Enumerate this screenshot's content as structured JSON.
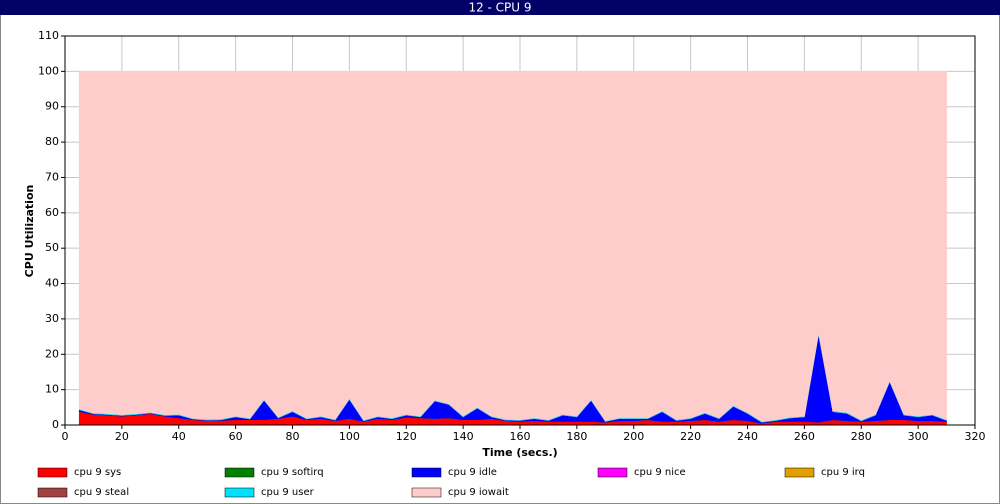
{
  "chart_data": {
    "type": "stacked_area",
    "title": "12 - CPU 9",
    "xlabel": "Time (secs.)",
    "ylabel": "CPU Utilization",
    "x": [
      5,
      10,
      15,
      20,
      25,
      30,
      35,
      40,
      45,
      50,
      55,
      60,
      65,
      70,
      75,
      80,
      85,
      90,
      95,
      100,
      105,
      110,
      115,
      120,
      125,
      130,
      135,
      140,
      145,
      150,
      155,
      160,
      165,
      170,
      175,
      180,
      185,
      190,
      195,
      200,
      205,
      210,
      215,
      220,
      225,
      230,
      235,
      240,
      245,
      250,
      255,
      260,
      265,
      270,
      275,
      280,
      285,
      290,
      295,
      300,
      305,
      310
    ],
    "xlim": [
      0,
      320
    ],
    "xticks": [
      0,
      20,
      40,
      60,
      80,
      100,
      120,
      140,
      160,
      180,
      200,
      220,
      240,
      260,
      280,
      300,
      320
    ],
    "ylim": [
      0,
      110
    ],
    "yticks": [
      0,
      10,
      20,
      30,
      40,
      50,
      60,
      70,
      80,
      90,
      100,
      110
    ],
    "grid": true,
    "legend": "bottom",
    "series": [
      {
        "name": "cpu 9 sys",
        "color": "#ff0000",
        "values": [
          3.8,
          3,
          2.8,
          2.5,
          2.8,
          3.2,
          2.5,
          2,
          1.5,
          1.2,
          1.3,
          1.5,
          1.5,
          1.5,
          1.8,
          2.5,
          1.5,
          1.8,
          1.2,
          1.8,
          1,
          1.8,
          1.5,
          2.2,
          2,
          1.8,
          2,
          1.5,
          1.5,
          1.8,
          1.2,
          1,
          1.2,
          1,
          1,
          1,
          1,
          0.8,
          1.2,
          1.2,
          1.5,
          1,
          1,
          1.2,
          1.5,
          1,
          1.5,
          1.2,
          0.5,
          1,
          1,
          1,
          0.8,
          1.5,
          1.2,
          1,
          1.2,
          1.5,
          1.5,
          1.2,
          1.2,
          1
        ]
      },
      {
        "name": "cpu 9 softirq",
        "color": "#008000",
        "values": [
          0,
          0,
          0,
          0,
          0,
          0,
          0,
          0,
          0,
          0,
          0,
          0,
          0,
          0,
          0,
          0,
          0,
          0,
          0,
          0,
          0,
          0,
          0,
          0,
          0,
          0,
          0,
          0,
          0,
          0,
          0,
          0,
          0,
          0,
          0,
          0,
          0,
          0,
          0,
          0,
          0,
          0,
          0,
          0,
          0,
          0,
          0,
          0,
          0,
          0,
          0,
          0,
          0,
          0,
          0,
          0,
          0,
          0,
          0,
          0,
          0,
          0
        ]
      },
      {
        "name": "cpu 9 idle",
        "color": "#0000ff",
        "values": [
          0.5,
          0.2,
          0.2,
          0.2,
          0.2,
          0.2,
          0.2,
          0.8,
          0.2,
          0.2,
          0.2,
          0.8,
          0.2,
          5.5,
          0.2,
          1.3,
          0.2,
          0.5,
          0.2,
          5.5,
          0.2,
          0.5,
          0.3,
          0.6,
          0.3,
          5,
          3.8,
          0.8,
          3.3,
          0.5,
          0.2,
          0.3,
          0.6,
          0.3,
          1.8,
          1.3,
          6,
          0.2,
          0.6,
          0.6,
          0.3,
          2.8,
          0.3,
          0.6,
          1.8,
          0.8,
          3.8,
          2.1,
          0.3,
          0.3,
          1,
          1.3,
          25,
          2.3,
          2.1,
          0.2,
          1.6,
          10.8,
          1.3,
          1.1,
          1.6,
          0.3
        ]
      },
      {
        "name": "cpu 9 nice",
        "color": "#ff00ff",
        "values": [
          0,
          0,
          0,
          0,
          0,
          0,
          0,
          0,
          0,
          0,
          0,
          0,
          0,
          0,
          0,
          0,
          0,
          0,
          0,
          0,
          0,
          0,
          0,
          0,
          0,
          0,
          0,
          0,
          0,
          0,
          0,
          0,
          0,
          0,
          0,
          0,
          0,
          0,
          0,
          0,
          0,
          0,
          0,
          0,
          0,
          0,
          0,
          0,
          0,
          0,
          0,
          0,
          0,
          0,
          0,
          0,
          0,
          0,
          0,
          0,
          0,
          0
        ]
      },
      {
        "name": "cpu 9 irq",
        "color": "#e0a000",
        "values": [
          0,
          0,
          0,
          0,
          0,
          0,
          0,
          0,
          0,
          0,
          0,
          0,
          0,
          0,
          0,
          0,
          0,
          0,
          0,
          0,
          0,
          0,
          0,
          0,
          0,
          0,
          0,
          0,
          0,
          0,
          0,
          0,
          0,
          0,
          0,
          0,
          0,
          0,
          0,
          0,
          0,
          0,
          0,
          0,
          0,
          0,
          0,
          0,
          0,
          0,
          0,
          0,
          0,
          0,
          0,
          0,
          0,
          0,
          0,
          0,
          0,
          0
        ]
      },
      {
        "name": "cpu 9 steal",
        "color": "#a04040",
        "values": [
          0,
          0,
          0,
          0,
          0,
          0,
          0,
          0,
          0,
          0,
          0,
          0,
          0,
          0,
          0,
          0,
          0,
          0,
          0,
          0,
          0,
          0,
          0,
          0,
          0,
          0,
          0,
          0,
          0,
          0,
          0,
          0,
          0,
          0,
          0,
          0,
          0,
          0,
          0,
          0,
          0,
          0,
          0,
          0,
          0,
          0,
          0,
          0,
          0,
          0,
          0,
          0,
          0,
          0,
          0,
          0,
          0,
          0,
          0,
          0,
          0,
          0
        ]
      },
      {
        "name": "cpu 9 user",
        "color": "#00e0ff",
        "values": [
          0.2,
          0.2,
          0.2,
          0.2,
          0.2,
          0.2,
          0.2,
          0.2,
          0.2,
          0.2,
          0.2,
          0.2,
          0.2,
          0.2,
          0.2,
          0.2,
          0.2,
          0.2,
          0.2,
          0.2,
          0.2,
          0.2,
          0.2,
          0.2,
          0.2,
          0.2,
          0.2,
          0.2,
          0.2,
          0.2,
          0.2,
          0.2,
          0.2,
          0.2,
          0.2,
          0.2,
          0.2,
          0.2,
          0.2,
          0.2,
          0.2,
          0.2,
          0.2,
          0.2,
          0.2,
          0.2,
          0.2,
          0.2,
          0.2,
          0.2,
          0.2,
          0.2,
          0.2,
          0.2,
          0.2,
          0.2,
          0.2,
          0.2,
          0.2,
          0.2,
          0.2,
          0.2
        ]
      },
      {
        "name": "cpu 9 iowait",
        "color": "#ffcccc",
        "values": [
          95.5,
          96.6,
          96.8,
          97.1,
          96.8,
          96.4,
          97.1,
          97,
          98.1,
          98.4,
          98.3,
          97.5,
          98.1,
          92.8,
          97.8,
          96,
          98.1,
          97.5,
          98.4,
          92.5,
          98.6,
          97.5,
          98,
          97,
          97.5,
          93,
          94,
          97.5,
          95,
          97.5,
          98.4,
          98.5,
          98,
          98.5,
          97,
          97.5,
          92.8,
          98.8,
          98,
          98,
          98,
          96,
          98.5,
          98,
          96.5,
          98,
          94.5,
          96.5,
          99,
          98.5,
          97.8,
          97.5,
          74,
          96,
          96.5,
          98.6,
          97,
          87.5,
          97,
          97.5,
          97,
          98.5
        ]
      }
    ]
  }
}
